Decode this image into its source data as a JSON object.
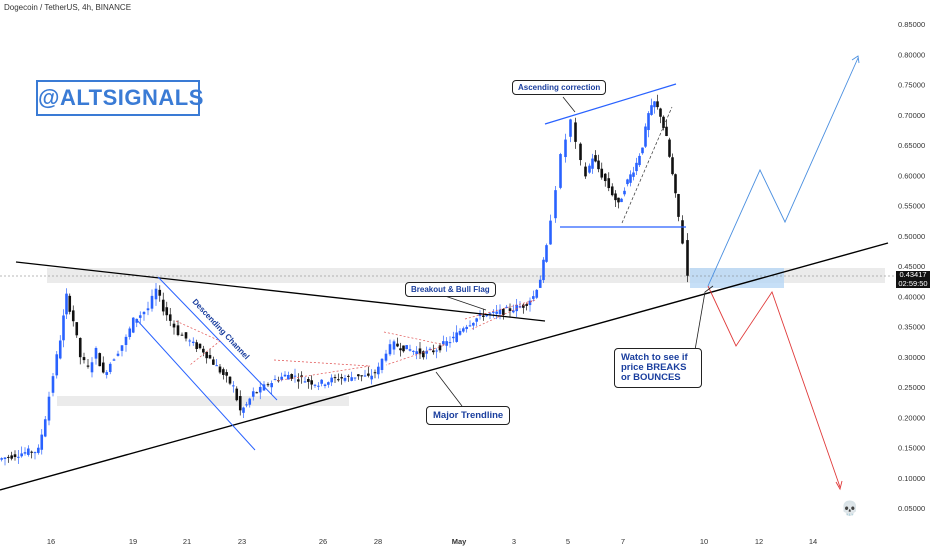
{
  "header": {
    "title": "Dogecoin / TetherUS, 4h, BINANCE"
  },
  "watermark": {
    "text": "@ALTSIGNALS"
  },
  "price_tag": {
    "price": "0.43417",
    "countdown": "02:59:50"
  },
  "annotations": {
    "ascending_correction": "Ascending correction",
    "breakout_bull_flag": "Breakout & Bull Flag",
    "major_trendline": "Major Trendline",
    "descending_channel": "Descending Channel",
    "watch": "Watch to see if price BREAKS or BOUNCES"
  },
  "skull_icon": "skull-icon",
  "colors": {
    "bull": "#2962ff",
    "bear": "#111111",
    "trendline": "#000000",
    "channel": "#2962ff",
    "bounce_path": "#4a8fe0",
    "break_path": "#e03a3a",
    "zone": "#e6e6e6",
    "zone_highlight": "#b8d7f5"
  },
  "chart_data": {
    "type": "candlestick",
    "title": "Dogecoin / TetherUS, 4h, BINANCE",
    "y_axis_ticks": [
      0.85,
      0.8,
      0.75,
      0.7,
      0.65,
      0.6,
      0.55,
      0.5,
      0.45,
      0.4,
      0.35,
      0.3,
      0.25,
      0.2,
      0.15,
      0.1,
      0.05
    ],
    "x_axis_ticks": [
      "16",
      "19",
      "21",
      "23",
      "26",
      "28",
      "May",
      "3",
      "5",
      "7",
      "10",
      "12",
      "14"
    ],
    "ylim": [
      0.03,
      0.86
    ],
    "current_price": 0.43417,
    "key_points": [
      {
        "date": "Apr 16",
        "price": 0.12
      },
      {
        "date": "Apr 16",
        "price": 0.42
      },
      {
        "date": "Apr 19",
        "price": 0.41
      },
      {
        "date": "Apr 23",
        "price": 0.17
      },
      {
        "date": "Apr 28",
        "price": 0.27
      },
      {
        "date": "May 1",
        "price": 0.32
      },
      {
        "date": "May 3",
        "price": 0.38
      },
      {
        "date": "May 5",
        "price": 0.69
      },
      {
        "date": "May 7",
        "price": 0.52
      },
      {
        "date": "May 8",
        "price": 0.73
      },
      {
        "date": "May 9",
        "price": 0.43
      }
    ],
    "scenario_bounce": [
      {
        "date": "May 10",
        "price": 0.42
      },
      {
        "date": "May 12",
        "price": 0.61
      },
      {
        "date": "May 13",
        "price": 0.52
      },
      {
        "date": "May 15",
        "price": 0.8
      }
    ],
    "scenario_break": [
      {
        "date": "May 10",
        "price": 0.42
      },
      {
        "date": "May 11",
        "price": 0.32
      },
      {
        "date": "May 12",
        "price": 0.41
      },
      {
        "date": "May 15",
        "price": 0.09
      }
    ],
    "grid": false,
    "legend": "none"
  }
}
